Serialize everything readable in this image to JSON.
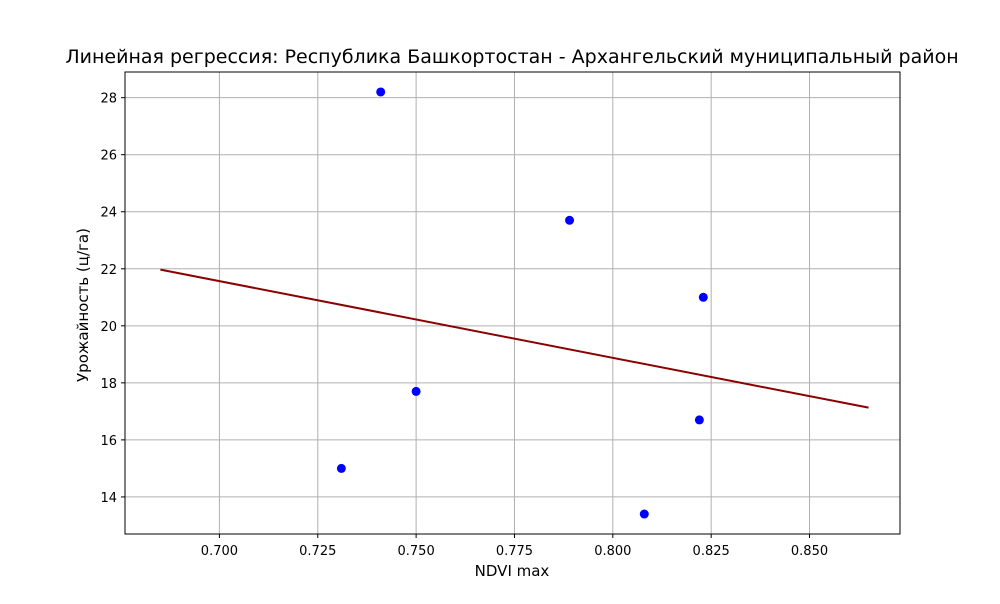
{
  "chart_data": {
    "type": "scatter",
    "title": "Линейная регрессия: Республика Башкортостан - Архангельский муниципальный район",
    "xlabel": "NDVI max",
    "ylabel": "Урожайность (ц/га)",
    "xlim": [
      0.676,
      0.873
    ],
    "ylim": [
      12.7,
      28.9
    ],
    "grid": true,
    "x_ticks": [
      0.7,
      0.725,
      0.75,
      0.775,
      0.8,
      0.825,
      0.85
    ],
    "x_tick_labels": [
      "0.700",
      "0.725",
      "0.750",
      "0.775",
      "0.800",
      "0.825",
      "0.850"
    ],
    "y_ticks": [
      14,
      16,
      18,
      20,
      22,
      24,
      26,
      28
    ],
    "y_tick_labels": [
      "14",
      "16",
      "18",
      "20",
      "22",
      "24",
      "26",
      "28"
    ],
    "points": [
      {
        "x": 0.741,
        "y": 28.2
      },
      {
        "x": 0.789,
        "y": 23.7
      },
      {
        "x": 0.823,
        "y": 21.0
      },
      {
        "x": 0.75,
        "y": 17.7
      },
      {
        "x": 0.822,
        "y": 16.7
      },
      {
        "x": 0.731,
        "y": 15.0
      },
      {
        "x": 0.808,
        "y": 13.4
      }
    ],
    "regression_line": {
      "x": [
        0.685,
        0.865
      ],
      "y": [
        21.97,
        17.13
      ]
    },
    "colors": {
      "points": "#0000ff",
      "line": "#8b0000",
      "grid": "#b0b0b0"
    }
  }
}
